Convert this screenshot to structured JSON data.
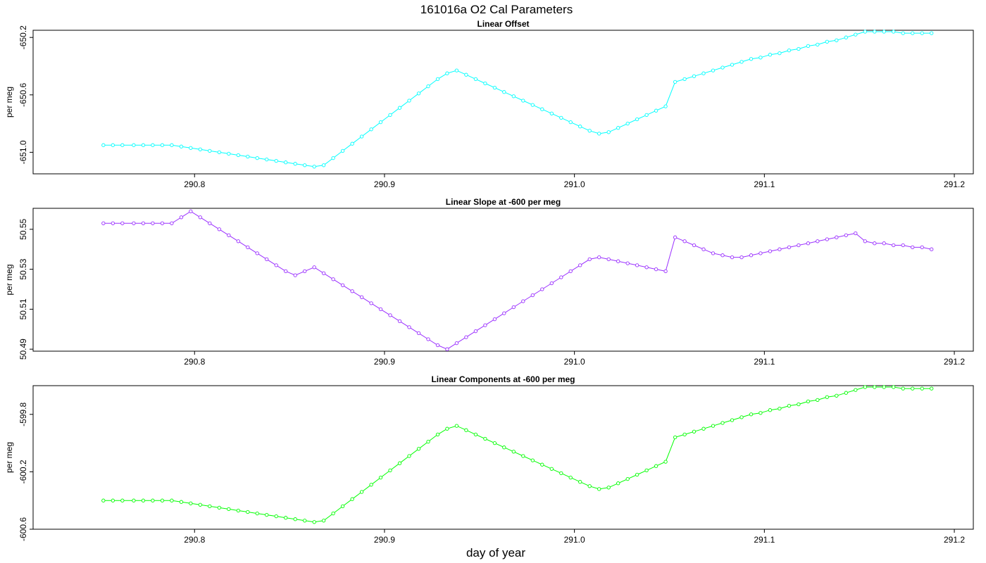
{
  "figure": {
    "title": "161016a   O2 Cal Parameters",
    "xlabel": "day of year"
  },
  "chart_data": [
    {
      "type": "line",
      "title": "Linear Offset",
      "ylabel": "per meg",
      "color": "#00ffff",
      "x_ticks": [
        290.8,
        290.9,
        291.0,
        291.1,
        291.2
      ],
      "x_tick_labels": [
        "290.8",
        "290.9",
        "291.0",
        "291.1",
        "291.2"
      ],
      "y_ticks": [
        -651.0,
        -650.6,
        -650.2
      ],
      "y_tick_labels": [
        "-651.0",
        "-650.6",
        "-650.2"
      ],
      "xlim": [
        290.715,
        291.21
      ],
      "ylim": [
        -651.15,
        -650.15
      ],
      "x": [
        290.752,
        290.757,
        290.762,
        290.768,
        290.773,
        290.778,
        290.783,
        290.788,
        290.793,
        290.798,
        290.803,
        290.808,
        290.813,
        290.818,
        290.823,
        290.828,
        290.833,
        290.838,
        290.843,
        290.848,
        290.853,
        290.858,
        290.863,
        290.868,
        290.873,
        290.878,
        290.883,
        290.888,
        290.893,
        290.898,
        290.903,
        290.908,
        290.913,
        290.918,
        290.923,
        290.928,
        290.933,
        290.938,
        290.943,
        290.948,
        290.953,
        290.958,
        290.963,
        290.968,
        290.973,
        290.978,
        290.983,
        290.988,
        290.993,
        290.998,
        291.003,
        291.008,
        291.013,
        291.018,
        291.023,
        291.028,
        291.033,
        291.038,
        291.043,
        291.048,
        291.053,
        291.058,
        291.063,
        291.068,
        291.073,
        291.078,
        291.083,
        291.088,
        291.093,
        291.098,
        291.103,
        291.108,
        291.113,
        291.118,
        291.123,
        291.128,
        291.133,
        291.138,
        291.143,
        291.148,
        291.153,
        291.158,
        291.163,
        291.168,
        291.173,
        291.178,
        291.183,
        291.188
      ],
      "values": [
        -650.95,
        -650.95,
        -650.95,
        -650.95,
        -650.95,
        -650.95,
        -650.95,
        -650.95,
        -650.96,
        -650.97,
        -650.98,
        -650.99,
        -651.0,
        -651.01,
        -651.02,
        -651.03,
        -651.04,
        -651.05,
        -651.06,
        -651.07,
        -651.08,
        -651.09,
        -651.1,
        -651.09,
        -651.04,
        -650.99,
        -650.94,
        -650.89,
        -650.84,
        -650.79,
        -650.74,
        -650.69,
        -650.64,
        -650.59,
        -650.54,
        -650.49,
        -650.45,
        -650.43,
        -650.46,
        -650.49,
        -650.52,
        -650.55,
        -650.58,
        -650.61,
        -650.64,
        -650.67,
        -650.7,
        -650.73,
        -650.76,
        -650.79,
        -650.82,
        -650.85,
        -650.87,
        -650.86,
        -650.83,
        -650.8,
        -650.77,
        -650.74,
        -650.71,
        -650.68,
        -650.51,
        -650.49,
        -650.47,
        -650.45,
        -650.43,
        -650.41,
        -650.39,
        -650.37,
        -650.35,
        -650.34,
        -650.32,
        -650.31,
        -650.29,
        -650.28,
        -650.26,
        -650.25,
        -650.23,
        -650.22,
        -650.2,
        -650.18,
        -650.16,
        -650.16,
        -650.16,
        -650.16,
        -650.17,
        -650.17,
        -650.17,
        -650.17
      ]
    },
    {
      "type": "line",
      "title": "Linear Slope at -600 per meg",
      "ylabel": "per meg",
      "color": "#9b30ff",
      "x_ticks": [
        290.8,
        290.9,
        291.0,
        291.1,
        291.2
      ],
      "x_tick_labels": [
        "290.8",
        "290.9",
        "291.0",
        "291.1",
        "291.2"
      ],
      "y_ticks": [
        50.49,
        50.51,
        50.53,
        50.55
      ],
      "y_tick_labels": [
        "50.49",
        "50.51",
        "50.53",
        "50.55"
      ],
      "xlim": [
        290.715,
        291.21
      ],
      "ylim": [
        50.489,
        50.5605
      ],
      "x": [
        290.752,
        290.757,
        290.762,
        290.768,
        290.773,
        290.778,
        290.783,
        290.788,
        290.793,
        290.798,
        290.803,
        290.808,
        290.813,
        290.818,
        290.823,
        290.828,
        290.833,
        290.838,
        290.843,
        290.848,
        290.853,
        290.858,
        290.863,
        290.868,
        290.873,
        290.878,
        290.883,
        290.888,
        290.893,
        290.898,
        290.903,
        290.908,
        290.913,
        290.918,
        290.923,
        290.928,
        290.933,
        290.938,
        290.943,
        290.948,
        290.953,
        290.958,
        290.963,
        290.968,
        290.973,
        290.978,
        290.983,
        290.988,
        290.993,
        290.998,
        291.003,
        291.008,
        291.013,
        291.018,
        291.023,
        291.028,
        291.033,
        291.038,
        291.043,
        291.048,
        291.053,
        291.058,
        291.063,
        291.068,
        291.073,
        291.078,
        291.083,
        291.088,
        291.093,
        291.098,
        291.103,
        291.108,
        291.113,
        291.118,
        291.123,
        291.128,
        291.133,
        291.138,
        291.143,
        291.148,
        291.153,
        291.158,
        291.163,
        291.168,
        291.173,
        291.178,
        291.183,
        291.188
      ],
      "values": [
        50.553,
        50.553,
        50.553,
        50.553,
        50.553,
        50.553,
        50.553,
        50.553,
        50.556,
        50.559,
        50.556,
        50.553,
        50.55,
        50.547,
        50.544,
        50.541,
        50.538,
        50.535,
        50.532,
        50.529,
        50.527,
        50.529,
        50.531,
        50.528,
        50.525,
        50.522,
        50.519,
        50.516,
        50.513,
        50.51,
        50.507,
        50.504,
        50.501,
        50.498,
        50.495,
        50.492,
        50.49,
        50.493,
        50.496,
        50.499,
        50.502,
        50.505,
        50.508,
        50.511,
        50.514,
        50.517,
        50.52,
        50.523,
        50.526,
        50.529,
        50.532,
        50.535,
        50.536,
        50.535,
        50.534,
        50.533,
        50.532,
        50.531,
        50.53,
        50.529,
        50.546,
        50.544,
        50.542,
        50.54,
        50.538,
        50.537,
        50.536,
        50.536,
        50.537,
        50.538,
        50.539,
        50.54,
        50.541,
        50.542,
        50.543,
        50.544,
        50.545,
        50.546,
        50.547,
        50.548,
        50.544,
        50.543,
        50.543,
        50.542,
        50.542,
        50.541,
        50.541,
        50.54
      ]
    },
    {
      "type": "line",
      "title": "Linear Components at -600 per meg",
      "ylabel": "per meg",
      "color": "#00ff00",
      "x_ticks": [
        290.8,
        290.9,
        291.0,
        291.1,
        291.2
      ],
      "x_tick_labels": [
        "290.8",
        "290.9",
        "291.0",
        "291.1",
        "291.2"
      ],
      "y_ticks": [
        -600.6,
        -600.2,
        -599.8
      ],
      "y_tick_labels": [
        "-600.6",
        "-600.2",
        "-599.8"
      ],
      "xlim": [
        290.715,
        291.21
      ],
      "ylim": [
        -600.6,
        -599.6
      ],
      "x": [
        290.752,
        290.757,
        290.762,
        290.768,
        290.773,
        290.778,
        290.783,
        290.788,
        290.793,
        290.798,
        290.803,
        290.808,
        290.813,
        290.818,
        290.823,
        290.828,
        290.833,
        290.838,
        290.843,
        290.848,
        290.853,
        290.858,
        290.863,
        290.868,
        290.873,
        290.878,
        290.883,
        290.888,
        290.893,
        290.898,
        290.903,
        290.908,
        290.913,
        290.918,
        290.923,
        290.928,
        290.933,
        290.938,
        290.943,
        290.948,
        290.953,
        290.958,
        290.963,
        290.968,
        290.973,
        290.978,
        290.983,
        290.988,
        290.993,
        290.998,
        291.003,
        291.008,
        291.013,
        291.018,
        291.023,
        291.028,
        291.033,
        291.038,
        291.043,
        291.048,
        291.053,
        291.058,
        291.063,
        291.068,
        291.073,
        291.078,
        291.083,
        291.088,
        291.093,
        291.098,
        291.103,
        291.108,
        291.113,
        291.118,
        291.123,
        291.128,
        291.133,
        291.138,
        291.143,
        291.148,
        291.153,
        291.158,
        291.163,
        291.168,
        291.173,
        291.178,
        291.183,
        291.188
      ],
      "values": [
        -600.4,
        -600.4,
        -600.4,
        -600.4,
        -600.4,
        -600.4,
        -600.4,
        -600.4,
        -600.41,
        -600.42,
        -600.43,
        -600.44,
        -600.45,
        -600.46,
        -600.47,
        -600.48,
        -600.49,
        -600.5,
        -600.51,
        -600.52,
        -600.53,
        -600.54,
        -600.55,
        -600.54,
        -600.49,
        -600.44,
        -600.39,
        -600.34,
        -600.29,
        -600.24,
        -600.19,
        -600.14,
        -600.09,
        -600.04,
        -599.99,
        -599.94,
        -599.9,
        -599.88,
        -599.91,
        -599.94,
        -599.97,
        -600.0,
        -600.03,
        -600.06,
        -600.09,
        -600.12,
        -600.15,
        -600.18,
        -600.21,
        -600.24,
        -600.27,
        -600.3,
        -600.32,
        -600.31,
        -600.28,
        -600.25,
        -600.22,
        -600.19,
        -600.16,
        -600.13,
        -599.96,
        -599.94,
        -599.92,
        -599.9,
        -599.88,
        -599.86,
        -599.84,
        -599.82,
        -599.8,
        -599.79,
        -599.77,
        -599.76,
        -599.74,
        -599.73,
        -599.71,
        -599.7,
        -599.68,
        -599.67,
        -599.65,
        -599.63,
        -599.61,
        -599.61,
        -599.61,
        -599.61,
        -599.62,
        -599.62,
        -599.62,
        -599.62
      ]
    }
  ]
}
